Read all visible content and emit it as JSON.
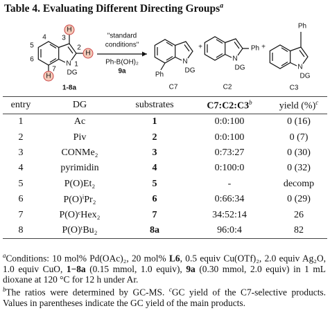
{
  "title": {
    "text": "Table 4. Evaluating Different Directing Groups",
    "mark": "a"
  },
  "scheme": {
    "reactant": {
      "h3": "H",
      "h2": "H",
      "h7": "H",
      "n": "N",
      "dg": "DG",
      "positions": [
        "4",
        "5",
        "6",
        "7",
        "3",
        "2",
        "1"
      ],
      "label": "1-8a"
    },
    "conditions": {
      "lines": [
        "\"standard",
        "conditions\""
      ],
      "reagent": "Ph-B(OH)₂",
      "reagent_label": "9a"
    },
    "products": [
      {
        "ph": "Ph",
        "n": "N",
        "dg": "DG",
        "label": "C7"
      },
      {
        "ph": "Ph",
        "n": "N",
        "dg": "DG",
        "label": "C2"
      },
      {
        "ph": "Ph",
        "n": "N",
        "dg": "DG",
        "label": "C3"
      }
    ],
    "plus": [
      "+",
      "+"
    ]
  },
  "table": {
    "headers": [
      {
        "text": "entry"
      },
      {
        "text": "DG"
      },
      {
        "text": "substrates"
      },
      {
        "text": "C7:C2:C3",
        "mark": "b",
        "bold": true
      },
      {
        "text": "yield (%)",
        "mark": "c"
      }
    ],
    "bold_columns": [
      2
    ],
    "rows": [
      [
        "1",
        "Ac",
        "1",
        "0:0:100",
        "0 (16)"
      ],
      [
        "2",
        "Piv",
        "2",
        "0:0:100",
        "0 (7)"
      ],
      [
        "3",
        "CONMe₂",
        "3",
        "0:73:27",
        "0 (30)"
      ],
      [
        "4",
        "pyrimidin",
        "4",
        "0:100:0",
        "0 (32)"
      ],
      [
        "5",
        "P(O)Et₂",
        "5",
        "-",
        "decomp"
      ],
      [
        "6",
        "P(O)ⁱPr₂",
        "6",
        "0:66:34",
        "0 (29)"
      ],
      [
        "7",
        "P(O)ᶜHex₂",
        "7",
        "34:52:14",
        "26"
      ],
      [
        "8",
        "P(O)ᵗBu₂",
        "8a",
        "96:0:4",
        "82"
      ]
    ]
  },
  "footnotes": [
    [
      {
        "mark": "a",
        "segments": [
          {
            "text": "Conditions: 10 mol% Pd(OAc)₂, 20 mol% "
          },
          {
            "text": "L6",
            "bold": true
          },
          {
            "text": ", 0.5 equiv Cu(OTf)₂, 2.0 equiv Ag₂O, 1.0 equiv CuO, "
          },
          {
            "text": "1−8a",
            "bold": true
          },
          {
            "text": " (0.15 mmol, 1.0 equiv), "
          },
          {
            "text": "9a",
            "bold": true
          },
          {
            "text": " (0.30 mmol, 2.0 equiv) in 1 mL dioxane at 120 °C for 12 h under Ar."
          }
        ]
      }
    ],
    [
      {
        "mark": "b",
        "segments": [
          {
            "text": "The ratios were determined by GC-MS. "
          }
        ]
      },
      {
        "mark": "c",
        "segments": [
          {
            "text": "GC yield of the C7-selective products. Values in parentheses indicate the GC yield of the main products."
          }
        ]
      }
    ]
  ]
}
